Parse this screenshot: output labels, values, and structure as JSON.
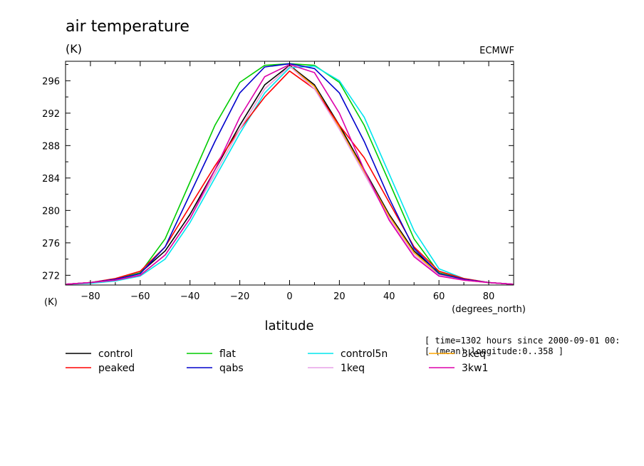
{
  "chart_data": {
    "type": "line",
    "title": "air temperature",
    "subtitle": "(K)",
    "source_label": "ECMWF",
    "ylabel": "(K)",
    "xlabel": "latitude",
    "x_units": "(degrees_north)",
    "xlim": [
      -90,
      90
    ],
    "ylim": [
      270.8,
      298.4
    ],
    "xticks": [
      -80,
      -60,
      -40,
      -20,
      0,
      20,
      40,
      60,
      80
    ],
    "yticks": [
      272,
      276,
      280,
      284,
      288,
      292,
      296
    ],
    "grid": false,
    "legend_position": "bottom",
    "notes": [
      "[ time=1302 hours since 2000-09-01 00:",
      "[ (mean) longitude:0..358 ]"
    ],
    "x": [
      -90,
      -80,
      -70,
      -60,
      -50,
      -40,
      -30,
      -20,
      -10,
      0,
      10,
      20,
      30,
      40,
      50,
      60,
      70,
      80,
      90
    ],
    "series": [
      {
        "name": "control",
        "color": "#000000",
        "values": [
          270.9,
          271.1,
          271.5,
          272.3,
          275.0,
          279.5,
          285.0,
          290.5,
          295.5,
          297.9,
          295.5,
          290.5,
          285.0,
          279.5,
          275.0,
          272.3,
          271.5,
          271.1,
          270.9
        ]
      },
      {
        "name": "flat",
        "color": "#00cc00",
        "values": [
          270.9,
          271.1,
          271.5,
          272.3,
          276.5,
          283.5,
          290.5,
          295.8,
          297.9,
          298.1,
          297.9,
          295.8,
          290.5,
          283.5,
          276.5,
          272.3,
          271.5,
          271.1,
          270.9
        ]
      },
      {
        "name": "control5n",
        "color": "#00e5ee",
        "values": [
          270.9,
          271.0,
          271.3,
          271.9,
          274.0,
          278.5,
          284.0,
          289.5,
          294.5,
          297.6,
          297.8,
          296.0,
          291.5,
          284.5,
          277.5,
          272.8,
          271.6,
          271.1,
          270.9
        ]
      },
      {
        "name": "3keq",
        "color": "#ffa500",
        "values": [
          270.9,
          271.1,
          271.4,
          272.0,
          274.5,
          279.0,
          284.5,
          290.0,
          295.0,
          297.8,
          295.3,
          290.2,
          284.8,
          279.3,
          274.8,
          272.1,
          271.4,
          271.1,
          270.9
        ]
      },
      {
        "name": "peaked",
        "color": "#ff0000",
        "values": [
          270.9,
          271.1,
          271.6,
          272.5,
          275.5,
          280.5,
          285.5,
          290.0,
          294.0,
          297.2,
          295.0,
          290.5,
          286.5,
          281.0,
          275.5,
          272.5,
          271.6,
          271.1,
          270.9
        ]
      },
      {
        "name": "qabs",
        "color": "#0000cc",
        "values": [
          270.9,
          271.1,
          271.5,
          272.2,
          275.5,
          282.0,
          288.5,
          294.5,
          297.7,
          298.1,
          297.5,
          294.5,
          288.5,
          281.5,
          275.3,
          272.2,
          271.5,
          271.1,
          270.9
        ]
      },
      {
        "name": "1keq",
        "color": "#e8a0e8",
        "values": [
          270.9,
          271.1,
          271.4,
          272.0,
          274.5,
          279.0,
          284.5,
          290.0,
          295.0,
          297.8,
          295.0,
          290.0,
          284.5,
          279.0,
          274.5,
          272.0,
          271.4,
          271.1,
          270.9
        ]
      },
      {
        "name": "3kw1",
        "color": "#dd00aa",
        "values": [
          270.9,
          271.1,
          271.4,
          272.0,
          274.5,
          279.0,
          285.0,
          291.5,
          296.5,
          298.0,
          297.0,
          292.0,
          285.0,
          278.8,
          274.3,
          271.9,
          271.4,
          271.1,
          270.9
        ]
      }
    ],
    "legend": [
      {
        "name": "control",
        "color": "#000000",
        "col": 0,
        "row": 0
      },
      {
        "name": "flat",
        "color": "#00cc00",
        "col": 1,
        "row": 0
      },
      {
        "name": "control5n",
        "color": "#00e5ee",
        "col": 2,
        "row": 0
      },
      {
        "name": "3keq",
        "color": "#ffa500",
        "col": 3,
        "row": 0
      },
      {
        "name": "peaked",
        "color": "#ff0000",
        "col": 0,
        "row": 1
      },
      {
        "name": "qabs",
        "color": "#0000cc",
        "col": 1,
        "row": 1
      },
      {
        "name": "1keq",
        "color": "#e8a0e8",
        "col": 2,
        "row": 1
      },
      {
        "name": "3kw1",
        "color": "#dd00aa",
        "col": 3,
        "row": 1
      }
    ]
  }
}
